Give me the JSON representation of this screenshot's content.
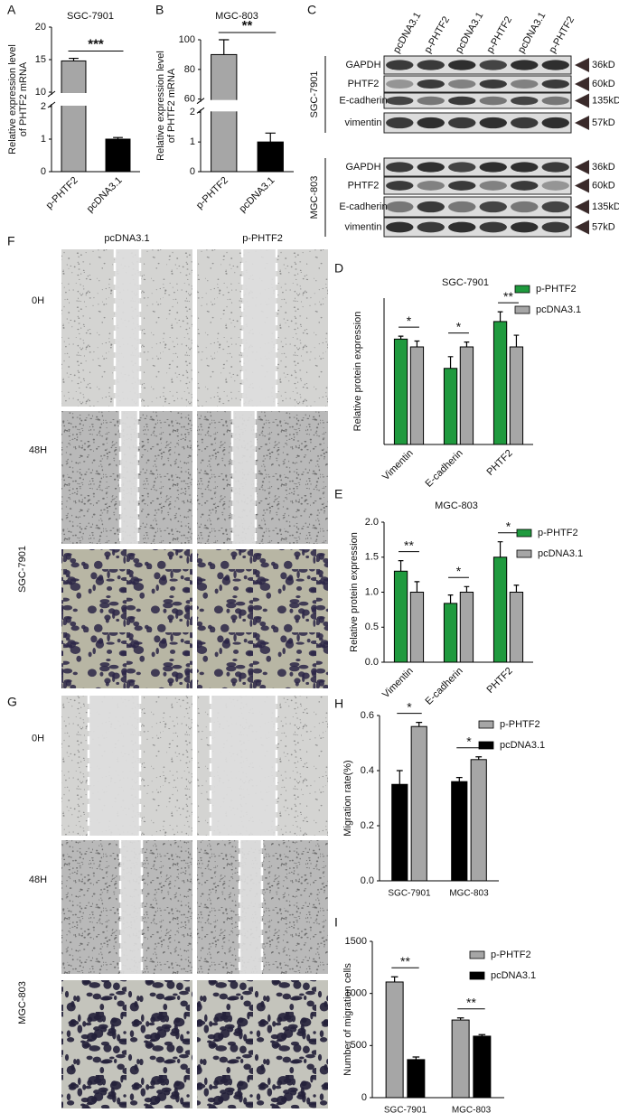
{
  "chart_data": [
    {
      "panel": "A",
      "type": "bar",
      "title": "SGC-7901",
      "ylabel": [
        "Relative expression level",
        "of PHTF2 mRNA"
      ],
      "categories": [
        "p-PHTF2",
        "pcDNA3.1"
      ],
      "values": [
        14.8,
        1.0
      ],
      "errors": [
        0.4,
        0.05
      ],
      "colors": [
        "#a6a6a6",
        "#000000"
      ],
      "ylim": [
        0,
        20
      ],
      "ybreak": [
        2,
        10
      ],
      "yticks": [
        0,
        1,
        2,
        10,
        15,
        20
      ],
      "significance": "***"
    },
    {
      "panel": "B",
      "type": "bar",
      "title": "MGC-803",
      "ylabel": [
        "Relative expression level",
        "of PHTF2 mRNA"
      ],
      "categories": [
        "p-PHTF2",
        "pcDNA3.1"
      ],
      "values": [
        90,
        1.0
      ],
      "errors": [
        10,
        0.3
      ],
      "colors": [
        "#a6a6a6",
        "#000000"
      ],
      "ylim": [
        0,
        100
      ],
      "ybreak": [
        2,
        60
      ],
      "yticks": [
        0,
        1,
        2,
        60,
        80,
        100
      ],
      "significance": "**"
    },
    {
      "panel": "D",
      "type": "bar",
      "title": "SGC-7901",
      "ylabel": "Relative  protein expression",
      "categories": [
        "Vimentin",
        "E-cadherin",
        "PHTF2"
      ],
      "series": [
        {
          "name": "p-PHTF2",
          "color": "#1f9a3e",
          "values": [
            1.08,
            0.78,
            1.26
          ],
          "errors": [
            0.03,
            0.12,
            0.1
          ]
        },
        {
          "name": "pcDNA3.1",
          "color": "#a6a6a6",
          "values": [
            1,
            1,
            1
          ],
          "errors": [
            0.06,
            0.05,
            0.12
          ]
        }
      ],
      "ylim": [
        0,
        1.5
      ],
      "significance": [
        "*",
        "*",
        "**"
      ],
      "legend": "right"
    },
    {
      "panel": "E",
      "type": "bar",
      "title": "MGC-803",
      "ylabel": "Relative  protein expression",
      "categories": [
        "Vimentin",
        "E-cadherin",
        "PHTF2"
      ],
      "series": [
        {
          "name": "p-PHTF2",
          "color": "#1f9a3e",
          "values": [
            1.3,
            0.84,
            1.5
          ],
          "errors": [
            0.15,
            0.12,
            0.22
          ]
        },
        {
          "name": "pcDNA3.1",
          "color": "#a6a6a6",
          "values": [
            1,
            1,
            1
          ],
          "errors": [
            0.15,
            0.08,
            0.1
          ]
        }
      ],
      "ylim": [
        0,
        2
      ],
      "yticks": [
        {
          "value": 0,
          "label": "0.0"
        },
        0.5,
        {
          "value": 1,
          "label": "1.0"
        },
        1.5,
        {
          "value": 2,
          "label": "2.0"
        }
      ],
      "significance": [
        "**",
        "*",
        "*"
      ],
      "legend": "right"
    },
    {
      "panel": "H",
      "type": "bar",
      "ylabel": "Migration rate(%)",
      "categories": [
        "SGC-7901",
        "MGC-803"
      ],
      "series": [
        {
          "name": "pcDNA3.1",
          "color": "#000000",
          "values": [
            0.35,
            0.36
          ],
          "errors": [
            0.05,
            0.015
          ]
        },
        {
          "name": "p-PHTF2",
          "color": "#a6a6a6",
          "values": [
            0.56,
            0.44
          ],
          "errors": [
            0.015,
            0.01
          ]
        }
      ],
      "ylim": [
        0,
        0.6
      ],
      "yticks": [
        {
          "value": 0,
          "label": "0.0"
        },
        0.2,
        0.4,
        0.6
      ],
      "significance": [
        "*",
        "*"
      ],
      "legend": "right",
      "legend_order": "reverse"
    },
    {
      "panel": "I",
      "type": "bar",
      "ylabel": "Number of migration cells",
      "categories": [
        "SGC-7901",
        "MGC-803"
      ],
      "series": [
        {
          "name": "p-PHTF2",
          "color": "#a6a6a6",
          "values": [
            1110,
            745
          ],
          "errors": [
            50,
            20
          ]
        },
        {
          "name": "pcDNA3.1",
          "color": "#000000",
          "values": [
            365,
            590
          ],
          "errors": [
            25,
            15
          ]
        }
      ],
      "ylim": [
        0,
        1500
      ],
      "yticks": [
        0,
        500,
        1000,
        1500
      ],
      "significance": [
        "**",
        "**"
      ],
      "legend": "right"
    }
  ],
  "western_blot": {
    "panel": "C",
    "lanes": [
      "pcDNA3.1",
      "p-PHTF2",
      "pcDNA3.1",
      "p-PHTF2",
      "pcDNA3.1",
      "p-PHTF2"
    ],
    "groups": [
      {
        "cell_line": "SGC-7901",
        "proteins": [
          "GAPDH",
          "PHTF2",
          "E-cadherin",
          "vimentin"
        ],
        "sizes": [
          "36kD",
          "60kD",
          "135kD",
          "57kD"
        ]
      },
      {
        "cell_line": "MGC-803",
        "proteins": [
          "GAPDH",
          "PHTF2",
          "E-cadherin",
          "vimentin"
        ],
        "sizes": [
          "36kD",
          "60kD",
          "135kD",
          "57kD"
        ]
      }
    ]
  },
  "wound_healing": [
    {
      "panel": "F",
      "cell_line": "SGC-7901",
      "columns": [
        "pcDNA3.1",
        "p-PHTF2"
      ],
      "rows": [
        "0H",
        "48H"
      ]
    },
    {
      "panel": "G",
      "cell_line": "MGC-803",
      "rows": [
        "0H",
        "48H"
      ]
    }
  ]
}
